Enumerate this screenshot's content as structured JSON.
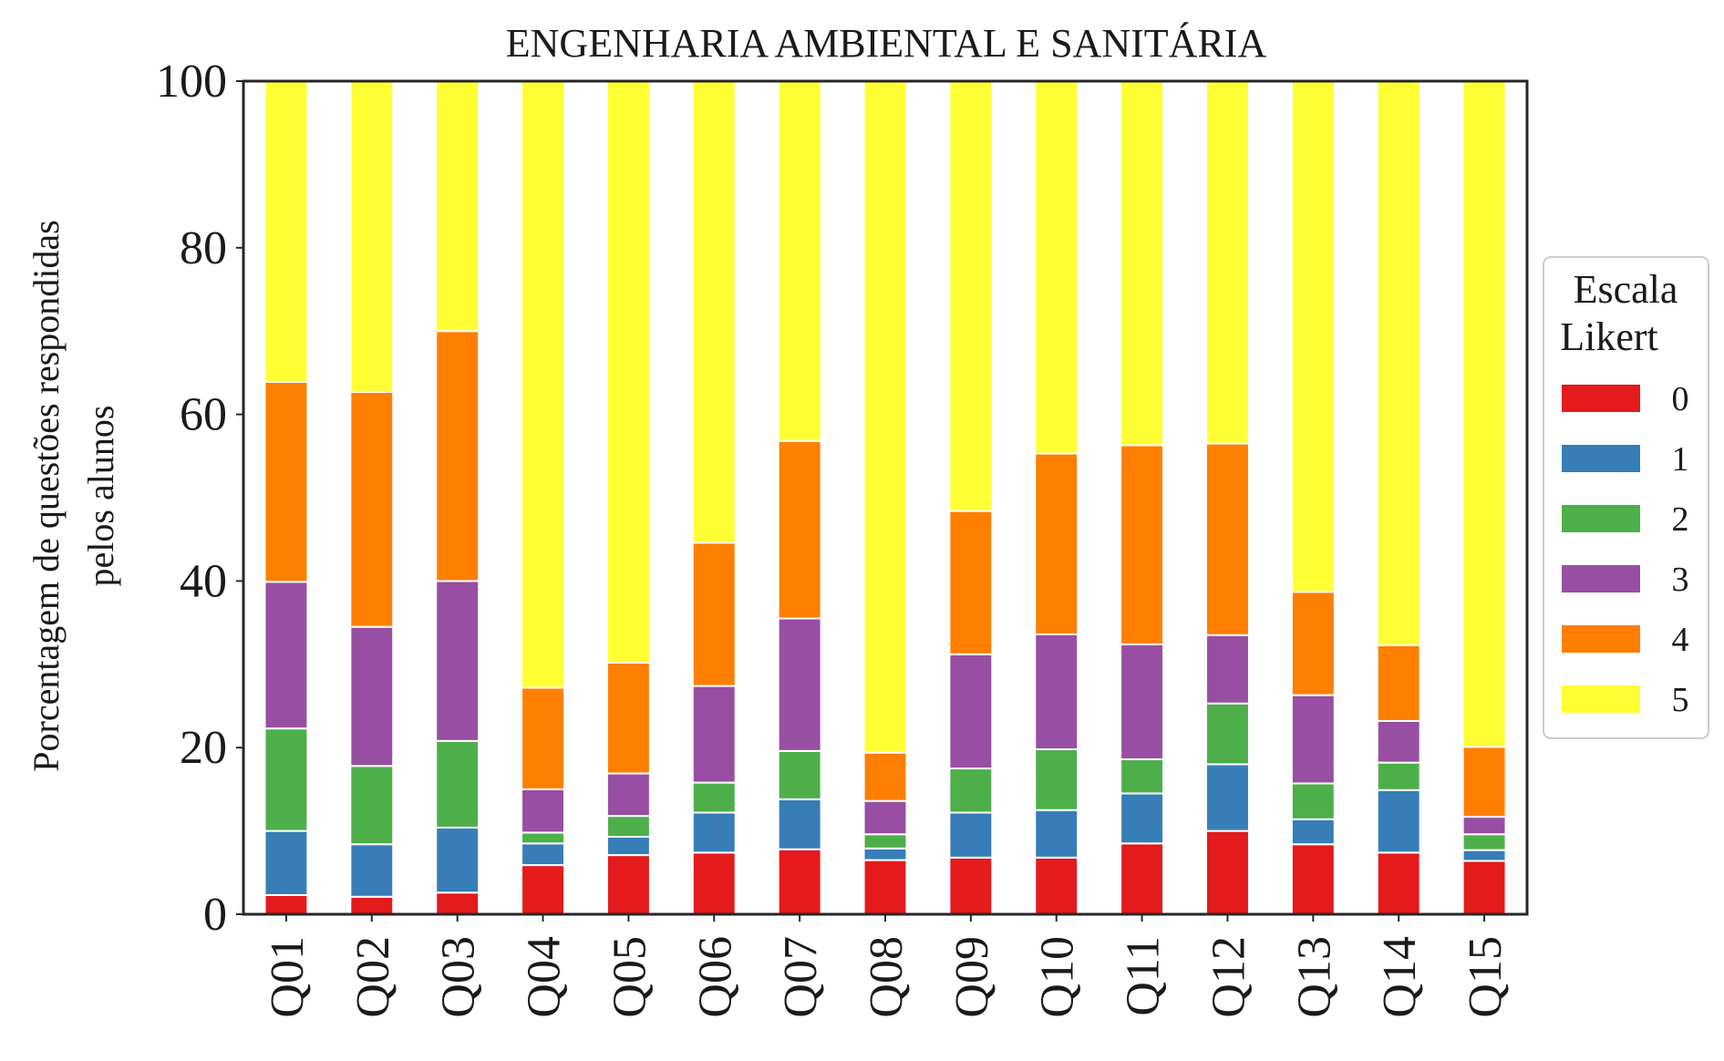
{
  "chart_data": {
    "type": "bar",
    "stacked": true,
    "title": "ENGENHARIA AMBIENTAL E SANITÁRIA",
    "ylabel_lines": [
      "Porcentagem de questões respondidas",
      "pelos alunos"
    ],
    "xlabel": "",
    "ylim": [
      0,
      100
    ],
    "yticks": [
      0,
      20,
      40,
      60,
      80,
      100
    ],
    "grid": false,
    "legend_position": "right",
    "legend_title_lines": [
      "Escala",
      "Likert"
    ],
    "categories": [
      "Q01",
      "Q02",
      "Q03",
      "Q04",
      "Q05",
      "Q06",
      "Q07",
      "Q08",
      "Q09",
      "Q10",
      "Q11",
      "Q12",
      "Q13",
      "Q14",
      "Q15"
    ],
    "series": [
      {
        "name": "0",
        "color": "#e41a1c",
        "values": [
          2.3,
          2.1,
          2.6,
          5.9,
          7.1,
          7.4,
          7.8,
          6.5,
          6.8,
          6.8,
          8.5,
          10.0,
          8.4,
          7.4,
          6.4
        ]
      },
      {
        "name": "1",
        "color": "#377eb8",
        "values": [
          7.7,
          6.3,
          7.8,
          2.6,
          2.2,
          4.8,
          6.0,
          1.4,
          5.4,
          5.7,
          6.0,
          8.0,
          3.0,
          7.5,
          1.3
        ]
      },
      {
        "name": "2",
        "color": "#4daf4a",
        "values": [
          12.3,
          9.4,
          10.4,
          1.3,
          2.5,
          3.6,
          5.8,
          1.7,
          5.3,
          7.3,
          4.1,
          7.3,
          4.3,
          3.3,
          1.9
        ]
      },
      {
        "name": "3",
        "color": "#984ea3",
        "values": [
          17.6,
          16.7,
          19.2,
          5.2,
          5.1,
          11.6,
          15.9,
          4.0,
          13.7,
          13.8,
          13.8,
          8.2,
          10.6,
          5.0,
          2.1
        ]
      },
      {
        "name": "4",
        "color": "#ff7f00",
        "values": [
          24.0,
          28.2,
          30.0,
          12.2,
          13.3,
          17.2,
          21.3,
          5.8,
          17.2,
          21.7,
          23.9,
          23.0,
          12.4,
          9.1,
          8.4
        ]
      },
      {
        "name": "5",
        "color": "#ffff33",
        "values": [
          36.1,
          37.3,
          30.0,
          72.8,
          69.8,
          55.4,
          43.2,
          80.6,
          51.6,
          44.7,
          43.7,
          43.5,
          61.3,
          67.7,
          79.9
        ]
      }
    ]
  }
}
